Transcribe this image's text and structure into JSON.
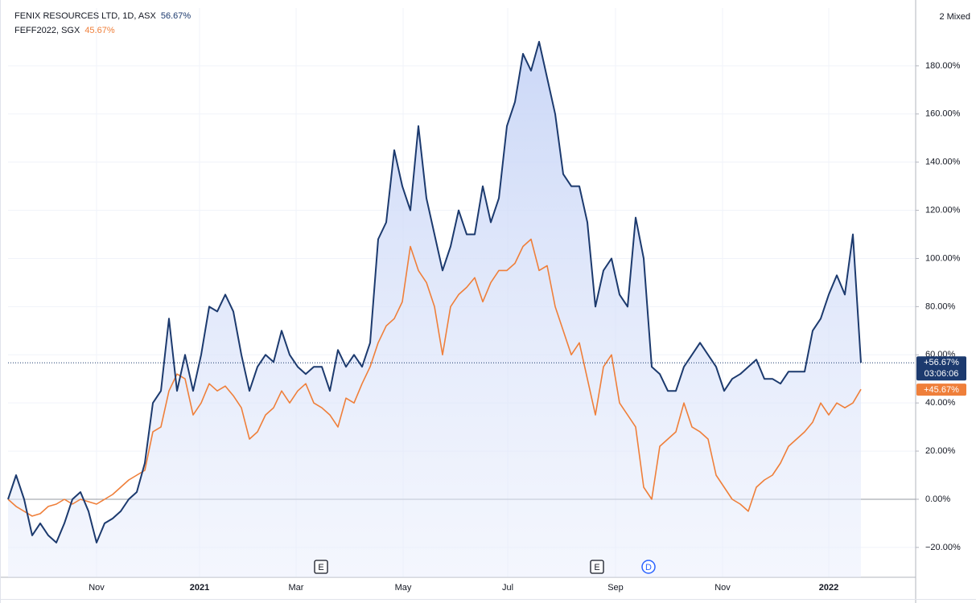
{
  "chart_data": {
    "type": "line",
    "mode_label": "2 Mixed",
    "xlim": [
      0,
      112.8
    ],
    "xticks": [
      {
        "value": 11,
        "label": "Nov"
      },
      {
        "value": 23.8,
        "label": "2021"
      },
      {
        "value": 35.8,
        "label": "Mar"
      },
      {
        "value": 49.1,
        "label": "May"
      },
      {
        "value": 62.1,
        "label": "Jul"
      },
      {
        "value": 75.5,
        "label": "Sep"
      },
      {
        "value": 88.8,
        "label": "Nov"
      },
      {
        "value": 102,
        "label": "2022"
      }
    ],
    "ylim": [
      -32.4,
      204
    ],
    "yticks": [
      {
        "value": -20,
        "label": "−20.00%"
      },
      {
        "value": 0,
        "label": "0.00%"
      },
      {
        "value": 20,
        "label": "20.00%"
      },
      {
        "value": 40,
        "label": "40.00%"
      },
      {
        "value": 60,
        "label": "60.00%"
      },
      {
        "value": 80,
        "label": "80.00%"
      },
      {
        "value": 100,
        "label": "100.00%"
      },
      {
        "value": 120,
        "label": "120.00%"
      },
      {
        "value": 140,
        "label": "140.00%"
      },
      {
        "value": 160,
        "label": "160.00%"
      },
      {
        "value": 180,
        "label": "180.00%"
      }
    ],
    "grid": true,
    "series": [
      {
        "name": "FENIX RESOURCES LTD, 1D, ASX",
        "legend_value": "56.67%",
        "price_label": "+56.67%",
        "countdown": "03:06:06",
        "color": "#1c3a6e",
        "area": true,
        "values": [
          0,
          10,
          0,
          -15,
          -10,
          -15,
          -18,
          -10,
          0,
          3,
          -5,
          -18,
          -10,
          -8,
          -5,
          0,
          3,
          15,
          40,
          45,
          75,
          45,
          60,
          45,
          60,
          80,
          78,
          85,
          78,
          60,
          45,
          55,
          60,
          57,
          70,
          60,
          55,
          52,
          55,
          55,
          45,
          62,
          55,
          60,
          55,
          65,
          108,
          115,
          145,
          130,
          120,
          155,
          125,
          110,
          95,
          105,
          120,
          110,
          110,
          130,
          115,
          125,
          155,
          165,
          185,
          178,
          190,
          175,
          160,
          135,
          130,
          130,
          115,
          80,
          95,
          100,
          85,
          80,
          117,
          100,
          55,
          52,
          45,
          45,
          55,
          60,
          65,
          60,
          55,
          45,
          50,
          52,
          55,
          58,
          50,
          50,
          48,
          53,
          53,
          53,
          70,
          75,
          85,
          93,
          85,
          110,
          56.67
        ]
      },
      {
        "name": "FEFF2022, SGX",
        "legend_value": "45.67%",
        "price_label": "+45.67%",
        "color": "#ef7f3a",
        "area": false,
        "values": [
          0,
          -3,
          -5,
          -7,
          -6,
          -3,
          -2,
          0,
          -2,
          0,
          -1,
          -2,
          0,
          2,
          5,
          8,
          10,
          12,
          28,
          30,
          45,
          52,
          50,
          35,
          40,
          48,
          45,
          47,
          43,
          38,
          25,
          28,
          35,
          38,
          45,
          40,
          45,
          48,
          40,
          38,
          35,
          30,
          42,
          40,
          48,
          55,
          65,
          72,
          75,
          82,
          105,
          95,
          90,
          80,
          60,
          80,
          85,
          88,
          92,
          82,
          90,
          95,
          95,
          98,
          105,
          108,
          95,
          97,
          80,
          70,
          60,
          65,
          50,
          35,
          55,
          60,
          40,
          35,
          30,
          5,
          0,
          22,
          25,
          28,
          40,
          30,
          28,
          25,
          10,
          5,
          0,
          -2,
          -5,
          5,
          8,
          10,
          15,
          22,
          25,
          28,
          32,
          40,
          35,
          40,
          38,
          40,
          45.67
        ]
      }
    ],
    "events": [
      {
        "x": 38.9,
        "label": "E"
      },
      {
        "x": 73.2,
        "label": "E"
      },
      {
        "x": 79.6,
        "label": "D"
      }
    ]
  }
}
